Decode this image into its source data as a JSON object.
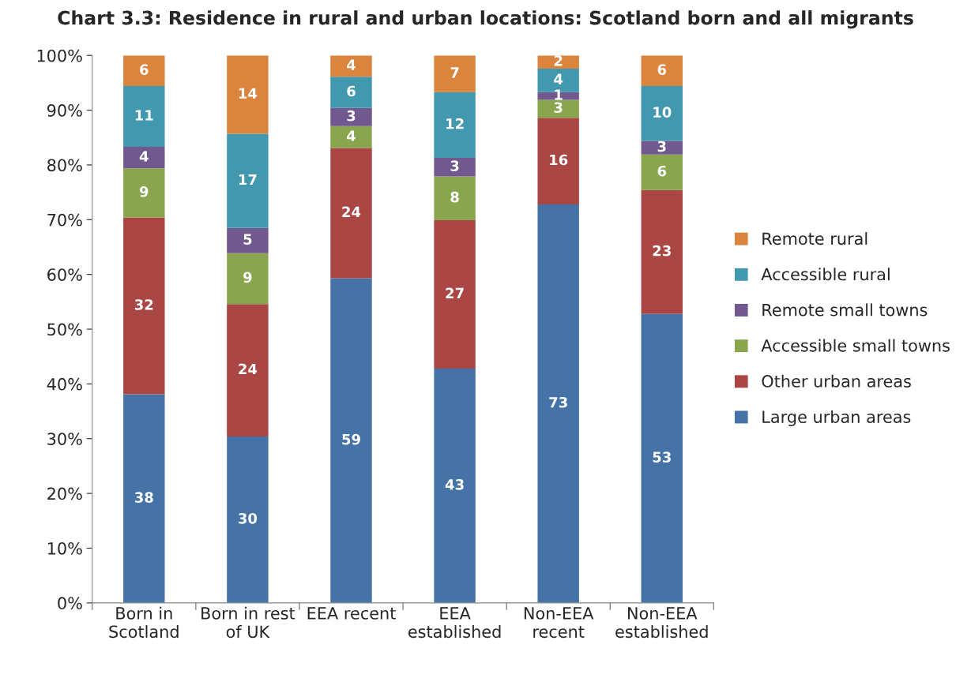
{
  "chart_data": {
    "type": "bar",
    "stacked": true,
    "title": "Chart 3.3: Residence in rural and urban locations: Scotland born and all migrants",
    "categories": [
      "Born in\nScotland",
      "Born in rest\nof UK",
      "EEA recent",
      "EEA\nestablished",
      "Non-EEA\nrecent",
      "Non-EEA\nestablished"
    ],
    "series": [
      {
        "name": "Large urban areas",
        "color": "#4572a7",
        "values": [
          38.1,
          30.4,
          59.3,
          42.8,
          72.8,
          52.8
        ],
        "value_labels": [
          "38",
          "30",
          "59",
          "43",
          "73",
          "53"
        ]
      },
      {
        "name": "Other urban areas",
        "color": "#aa4643",
        "values": [
          32.3,
          24.2,
          23.8,
          27.1,
          15.8,
          22.6
        ],
        "value_labels": [
          "32",
          "24",
          "24",
          "27",
          "16",
          "23"
        ]
      },
      {
        "name": "Accessible small towns",
        "color": "#89a54e",
        "values": [
          9.0,
          9.3,
          4.0,
          8.0,
          3.3,
          6.5
        ],
        "value_labels": [
          "9",
          "9",
          "4",
          "8",
          "3",
          "6"
        ]
      },
      {
        "name": "Remote small towns",
        "color": "#71588f",
        "values": [
          3.9,
          4.6,
          3.3,
          3.4,
          1.4,
          2.5
        ],
        "value_labels": [
          "4",
          "5",
          "3",
          "3",
          "1",
          "3"
        ]
      },
      {
        "name": "Accessible rural",
        "color": "#4198af",
        "values": [
          11.1,
          17.2,
          5.7,
          12.0,
          4.3,
          10.0
        ],
        "value_labels": [
          "11",
          "17",
          "6",
          "12",
          "4",
          "10"
        ]
      },
      {
        "name": "Remote rural",
        "color": "#db843d",
        "values": [
          5.6,
          14.3,
          3.9,
          6.7,
          2.4,
          5.6
        ],
        "value_labels": [
          "6",
          "14",
          "4",
          "7",
          "2",
          "6"
        ]
      }
    ],
    "ylim": [
      0,
      100
    ],
    "yticks": [
      {
        "value": 0,
        "label": "0%"
      },
      {
        "value": 10,
        "label": "10%"
      },
      {
        "value": 20,
        "label": "20%"
      },
      {
        "value": 30,
        "label": "30%"
      },
      {
        "value": 40,
        "label": "40%"
      },
      {
        "value": 50,
        "label": "50%"
      },
      {
        "value": 60,
        "label": "60%"
      },
      {
        "value": 70,
        "label": "70%"
      },
      {
        "value": 80,
        "label": "80%"
      },
      {
        "value": 90,
        "label": "90%"
      },
      {
        "value": 100,
        "label": "100%"
      }
    ],
    "grid": false,
    "legend": "right"
  }
}
